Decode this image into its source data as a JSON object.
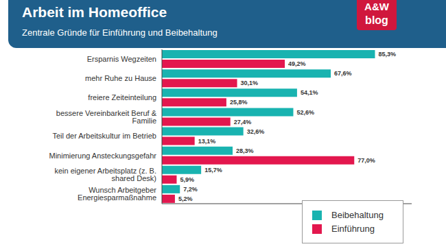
{
  "chart_data": {
    "type": "bar",
    "orientation": "horizontal",
    "title": "Arbeit im Homeoffice",
    "subtitle": "Zentrale Gründe für Einführung und Beibehaltung",
    "annotations": [
      "A&W",
      "blog"
    ],
    "categories": [
      "Ersparnis Wegzeiten",
      "mehr Ruhe zu Hause",
      "freiere Zeiteinteilung",
      "bessere Vereinbarkeit Beruf & Familie",
      "Teil der Arbeitskultur im Betrieb",
      "Minimierung Ansteckungsgefahr",
      "kein eigener Arbeitsplatz (z. B. shared Desk)",
      "Wunsch Arbeitgeber Energiesparmaßnahme"
    ],
    "series": [
      {
        "name": "Beibehaltung",
        "color": "#19b3b0",
        "values": [
          85.3,
          67.6,
          54.1,
          52.6,
          32.6,
          28.3,
          15.7,
          7.2
        ],
        "value_labels": [
          "85,3%",
          "67,6%",
          "54,1%",
          "52,6%",
          "32,6%",
          "28,3%",
          "15,7%",
          "7,2%"
        ]
      },
      {
        "name": "Einführung",
        "color": "#e3174e",
        "values": [
          49.2,
          30.1,
          25.8,
          27.4,
          13.1,
          77.0,
          5.9,
          5.2
        ],
        "value_labels": [
          "49,2%",
          "30,1%",
          "25,8%",
          "27,4%",
          "13,1%",
          "77,0%",
          "5,9%",
          "5,2%"
        ]
      }
    ],
    "xlim": [
      0,
      100
    ],
    "grid": false,
    "legend": "lower right",
    "data_labels": true,
    "tick_labels": "y"
  }
}
